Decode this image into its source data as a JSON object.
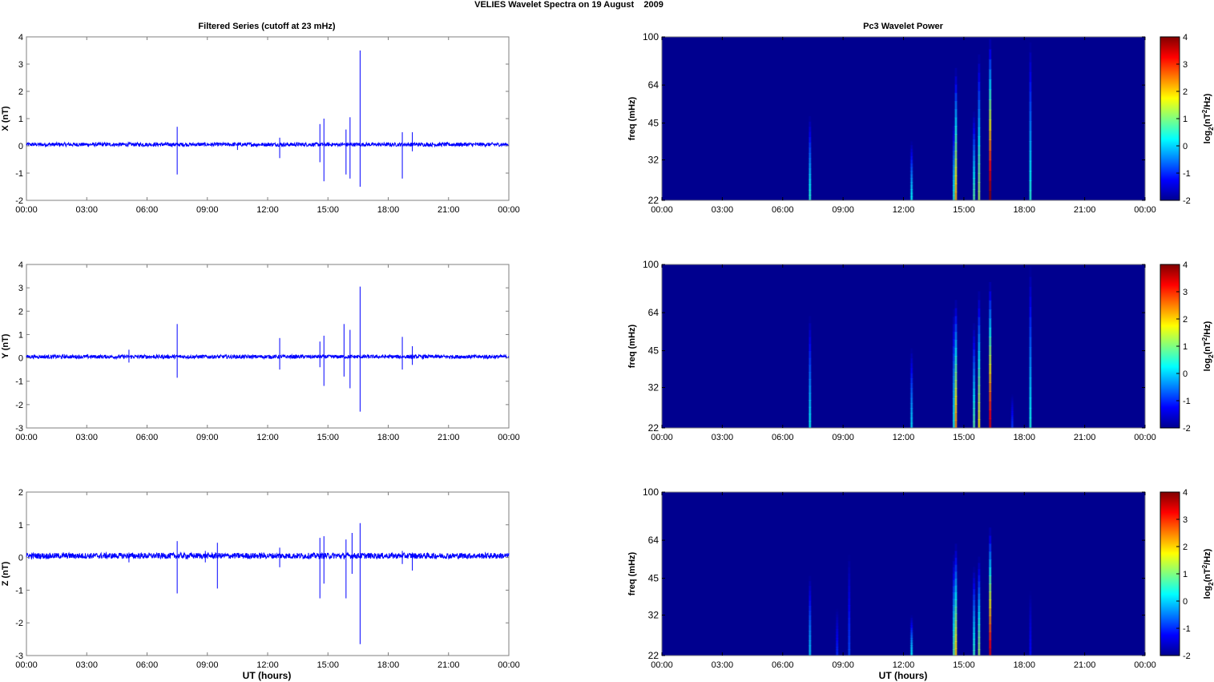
{
  "figure": {
    "title": "VELIES Wavelet Spectra on 19 August    2009",
    "left_title": "Filtered Series (cutoff at 23 mHz)",
    "right_title": "Pc3 Wavelet Power",
    "xlabel": "UT (hours)"
  },
  "colors": {
    "series": "#0000ff",
    "background": "#00008f"
  },
  "chart_data": [
    {
      "type": "line",
      "component": "X",
      "ylabel": "X (nT)",
      "x_ticks": [
        "00:00",
        "03:00",
        "06:00",
        "09:00",
        "12:00",
        "15:00",
        "18:00",
        "21:00",
        "00:00"
      ],
      "xlim_hours": [
        0,
        24
      ],
      "ylim": [
        -2,
        4
      ],
      "y_ticks": [
        "-2",
        "-1",
        "0",
        "1",
        "2",
        "3",
        "4"
      ],
      "baseline": 0.05,
      "noise_amplitude": 0.07,
      "spikes": [
        [
          7.5,
          0.7,
          -1.05
        ],
        [
          10.5,
          0.1,
          -0.15
        ],
        [
          12.6,
          0.3,
          -0.45
        ],
        [
          14.6,
          0.8,
          -0.6
        ],
        [
          14.8,
          1.0,
          -1.3
        ],
        [
          15.9,
          0.6,
          -1.05
        ],
        [
          16.1,
          1.05,
          -1.2
        ],
        [
          16.6,
          3.5,
          -1.5
        ],
        [
          18.7,
          0.5,
          -1.2
        ],
        [
          19.2,
          0.5,
          -0.2
        ]
      ]
    },
    {
      "type": "line",
      "component": "Y",
      "ylabel": "Y (nT)",
      "x_ticks": [
        "00:00",
        "03:00",
        "06:00",
        "09:00",
        "12:00",
        "15:00",
        "18:00",
        "21:00",
        "00:00"
      ],
      "xlim_hours": [
        0,
        24
      ],
      "ylim": [
        -3,
        4
      ],
      "y_ticks": [
        "-3",
        "-2",
        "-1",
        "0",
        "1",
        "2",
        "3",
        "4"
      ],
      "baseline": 0.05,
      "noise_amplitude": 0.08,
      "spikes": [
        [
          5.1,
          0.35,
          -0.2
        ],
        [
          7.5,
          1.45,
          -0.85
        ],
        [
          12.6,
          0.85,
          -0.5
        ],
        [
          14.6,
          0.7,
          -0.4
        ],
        [
          14.8,
          0.95,
          -1.2
        ],
        [
          15.8,
          1.45,
          -0.8
        ],
        [
          16.1,
          1.2,
          -1.3
        ],
        [
          16.6,
          3.05,
          -2.3
        ],
        [
          18.7,
          0.9,
          -0.5
        ],
        [
          19.2,
          0.5,
          -0.3
        ]
      ]
    },
    {
      "type": "line",
      "component": "Z",
      "ylabel": "Z (nT)",
      "x_ticks": [
        "00:00",
        "03:00",
        "06:00",
        "09:00",
        "12:00",
        "15:00",
        "18:00",
        "21:00",
        "00:00"
      ],
      "xlim_hours": [
        0,
        24
      ],
      "ylim": [
        -3,
        2
      ],
      "y_ticks": [
        "-3",
        "-2",
        "-1",
        "0",
        "1",
        "2"
      ],
      "baseline": 0.05,
      "noise_amplitude": 0.09,
      "spikes": [
        [
          5.1,
          0.15,
          -0.15
        ],
        [
          7.5,
          0.5,
          -1.1
        ],
        [
          8.9,
          0.2,
          -0.15
        ],
        [
          9.5,
          0.45,
          -0.95
        ],
        [
          12.6,
          0.3,
          -0.3
        ],
        [
          14.6,
          0.6,
          -1.25
        ],
        [
          14.8,
          0.65,
          -0.8
        ],
        [
          15.9,
          0.55,
          -1.25
        ],
        [
          16.2,
          0.75,
          -0.5
        ],
        [
          16.6,
          1.05,
          -2.65
        ],
        [
          18.7,
          0.2,
          -0.2
        ],
        [
          19.2,
          0.15,
          -0.4
        ]
      ]
    },
    {
      "type": "heatmap",
      "component": "X",
      "ylabel": "freq (mHz)",
      "colorbar_label": "log2(nT2/Hz)",
      "x_ticks": [
        "00:00",
        "03:00",
        "06:00",
        "09:00",
        "12:00",
        "15:00",
        "18:00",
        "21:00",
        "00:00"
      ],
      "xlim_hours": [
        0,
        24
      ],
      "y_ticks": [
        "22",
        "32",
        "45",
        "64",
        "100"
      ],
      "ylim_mhz": [
        22,
        100
      ],
      "scale": "log",
      "colorbar_ticks": [
        "-2",
        "-1",
        "0",
        "1",
        "2",
        "3",
        "4"
      ],
      "clim": [
        -2,
        4
      ],
      "streaks": [
        [
          7.35,
          48,
          0.5
        ],
        [
          12.4,
          38,
          0.3
        ],
        [
          14.5,
          46,
          0.5
        ],
        [
          14.6,
          75,
          2.2
        ],
        [
          15.5,
          50,
          0.8
        ],
        [
          15.75,
          85,
          1.3
        ],
        [
          16.3,
          98,
          4.0
        ],
        [
          18.3,
          95,
          0.5
        ]
      ]
    },
    {
      "type": "heatmap",
      "component": "Y",
      "ylabel": "freq (mHz)",
      "colorbar_label": "log2(nT2/Hz)",
      "x_ticks": [
        "00:00",
        "03:00",
        "06:00",
        "09:00",
        "12:00",
        "15:00",
        "18:00",
        "21:00",
        "00:00"
      ],
      "xlim_hours": [
        0,
        24
      ],
      "y_ticks": [
        "22",
        "32",
        "45",
        "64",
        "100"
      ],
      "ylim_mhz": [
        22,
        100
      ],
      "scale": "log",
      "colorbar_ticks": [
        "-2",
        "-1",
        "0",
        "1",
        "2",
        "3",
        "4"
      ],
      "clim": [
        -2,
        4
      ],
      "streaks": [
        [
          7.35,
          62,
          0.3
        ],
        [
          12.4,
          46,
          0.1
        ],
        [
          14.5,
          66,
          0.4
        ],
        [
          14.6,
          72,
          2.4
        ],
        [
          15.5,
          58,
          0.8
        ],
        [
          15.75,
          78,
          1.8
        ],
        [
          16.3,
          85,
          3.5
        ],
        [
          17.4,
          30,
          -0.9
        ],
        [
          18.3,
          98,
          0.4
        ]
      ]
    },
    {
      "type": "heatmap",
      "component": "Z",
      "ylabel": "freq (mHz)",
      "colorbar_label": "log2(nT2/Hz)",
      "x_ticks": [
        "00:00",
        "03:00",
        "06:00",
        "09:00",
        "12:00",
        "15:00",
        "18:00",
        "21:00",
        "00:00"
      ],
      "xlim_hours": [
        0,
        24
      ],
      "y_ticks": [
        "22",
        "32",
        "45",
        "64",
        "100"
      ],
      "ylim_mhz": [
        22,
        100
      ],
      "scale": "log",
      "colorbar_ticks": [
        "-2",
        "-1",
        "0",
        "1",
        "2",
        "3",
        "4"
      ],
      "clim": [
        -2,
        4
      ],
      "streaks": [
        [
          7.35,
          46,
          0.0
        ],
        [
          8.7,
          34,
          -1.0
        ],
        [
          9.3,
          56,
          -0.8
        ],
        [
          12.4,
          32,
          0.2
        ],
        [
          14.5,
          56,
          0.8
        ],
        [
          14.6,
          62,
          2.0
        ],
        [
          15.5,
          50,
          0.6
        ],
        [
          15.75,
          55,
          1.2
        ],
        [
          16.3,
          72,
          3.5
        ],
        [
          18.3,
          40,
          -1.2
        ]
      ]
    }
  ]
}
